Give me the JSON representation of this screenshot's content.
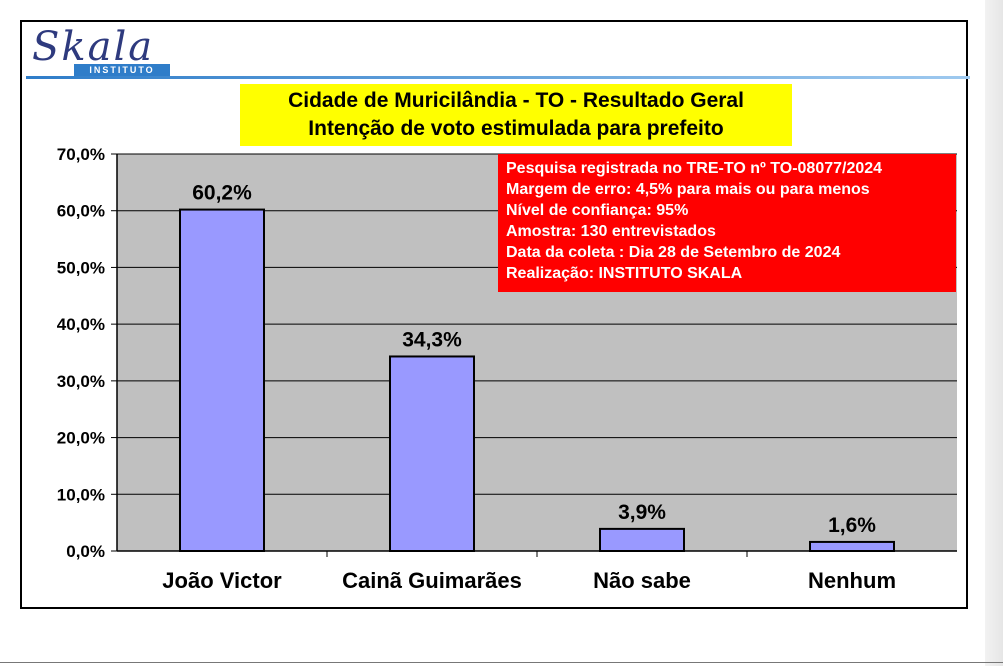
{
  "logo": {
    "name": "Skala",
    "subtitle": "INSTITUTO"
  },
  "title_lines": [
    "Cidade de Muricilândia - TO - Resultado Geral",
    "Intenção de voto estimulada para prefeito"
  ],
  "note_lines": [
    "Pesquisa registrada no TRE-TO nº TO-08077/2024",
    "Margem de erro: 4,5% para mais ou para menos",
    "Nível de confiança: 95%",
    "Amostra: 130 entrevistados",
    "Data da coleta : Dia 28 de Setembro de 2024",
    "Realização: INSTITUTO SKALA"
  ],
  "chart_data": {
    "type": "bar",
    "title": "Cidade de Muricilândia - TO - Resultado Geral / Intenção de voto estimulada para prefeito",
    "categories": [
      "João Victor",
      "Cainã Guimarães",
      "Não sabe",
      "Nenhum"
    ],
    "values": [
      60.2,
      34.3,
      3.9,
      1.6
    ],
    "value_labels": [
      "60,2%",
      "34,3%",
      "3,9%",
      "1,6%"
    ],
    "ylim": [
      0,
      70
    ],
    "yticks": [
      0,
      10,
      20,
      30,
      40,
      50,
      60,
      70
    ],
    "ytick_labels": [
      "0,0%",
      "10,0%",
      "20,0%",
      "30,0%",
      "40,0%",
      "50,0%",
      "60,0%",
      "70,0%"
    ],
    "xlabel": "",
    "ylabel": "",
    "grid": true,
    "legend": false,
    "colors": {
      "bar": "#9999ff",
      "plot_background": "#c0c0c0",
      "title_background": "#ffff00",
      "note_background": "#ff0000"
    }
  }
}
